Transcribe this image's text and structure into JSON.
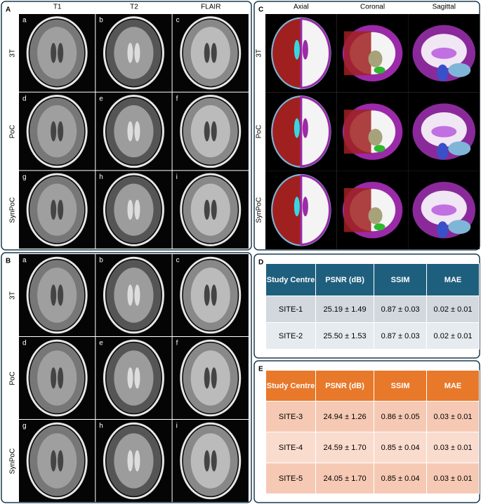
{
  "panels": {
    "A": {
      "label": "A",
      "columns": [
        "T1",
        "T2",
        "FLAIR"
      ],
      "rows": [
        "3T",
        "PoC",
        "SynPoC"
      ],
      "cells": [
        "a",
        "b",
        "c",
        "d",
        "e",
        "f",
        "g",
        "h",
        "i"
      ]
    },
    "B": {
      "label": "B",
      "rows": [
        "3T",
        "PoC",
        "SynPoC"
      ],
      "cells": [
        "a",
        "b",
        "c",
        "d",
        "e",
        "f",
        "g",
        "h",
        "i"
      ]
    },
    "C": {
      "label": "C",
      "columns": [
        "Axial",
        "Coronal",
        "Sagittal"
      ],
      "rows": [
        "3T",
        "PoC",
        "SynPoC"
      ]
    },
    "D": {
      "label": "D",
      "table": {
        "header": [
          "Study Centre",
          "PSNR (dB)",
          "SSIM",
          "MAE"
        ],
        "rows": [
          [
            "SITE-1",
            "25.19 ± 1.49",
            "0.87 ± 0.03",
            "0.02 ± 0.01"
          ],
          [
            "SITE-2",
            "25.50 ± 1.53",
            "0.87 ± 0.03",
            "0.02 ± 0.01"
          ]
        ]
      }
    },
    "E": {
      "label": "E",
      "table": {
        "header": [
          "Study Centre",
          "PSNR (dB)",
          "SSIM",
          "MAE"
        ],
        "rows": [
          [
            "SITE-3",
            "24.94 ± 1.26",
            "0.86 ± 0.05",
            "0.03 ± 0.01"
          ],
          [
            "SITE-4",
            "24.59 ± 1.70",
            "0.85 ± 0.04",
            "0.03 ± 0.01"
          ],
          [
            "SITE-5",
            "24.05 ± 1.70",
            "0.85 ± 0.04",
            "0.03 ± 0.01"
          ]
        ]
      }
    }
  }
}
